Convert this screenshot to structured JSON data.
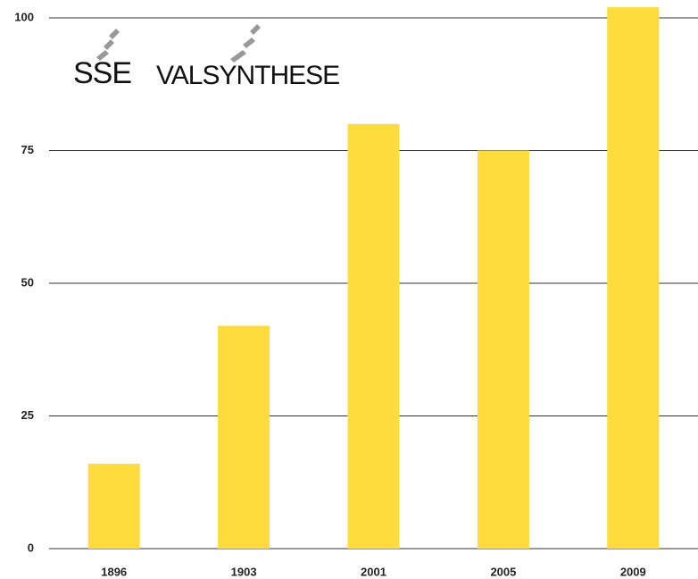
{
  "chart_data": {
    "type": "bar",
    "annotations": [
      "SSE",
      "VALSYNTHESE"
    ],
    "categories": [
      "1896",
      "1903",
      "2001",
      "2005",
      "2009"
    ],
    "values": [
      16,
      42,
      80,
      75,
      102
    ],
    "color": "#fddc3c",
    "ylim": [
      0,
      100
    ],
    "yticks": [
      0,
      25,
      50,
      75,
      100
    ],
    "grid": true
  }
}
